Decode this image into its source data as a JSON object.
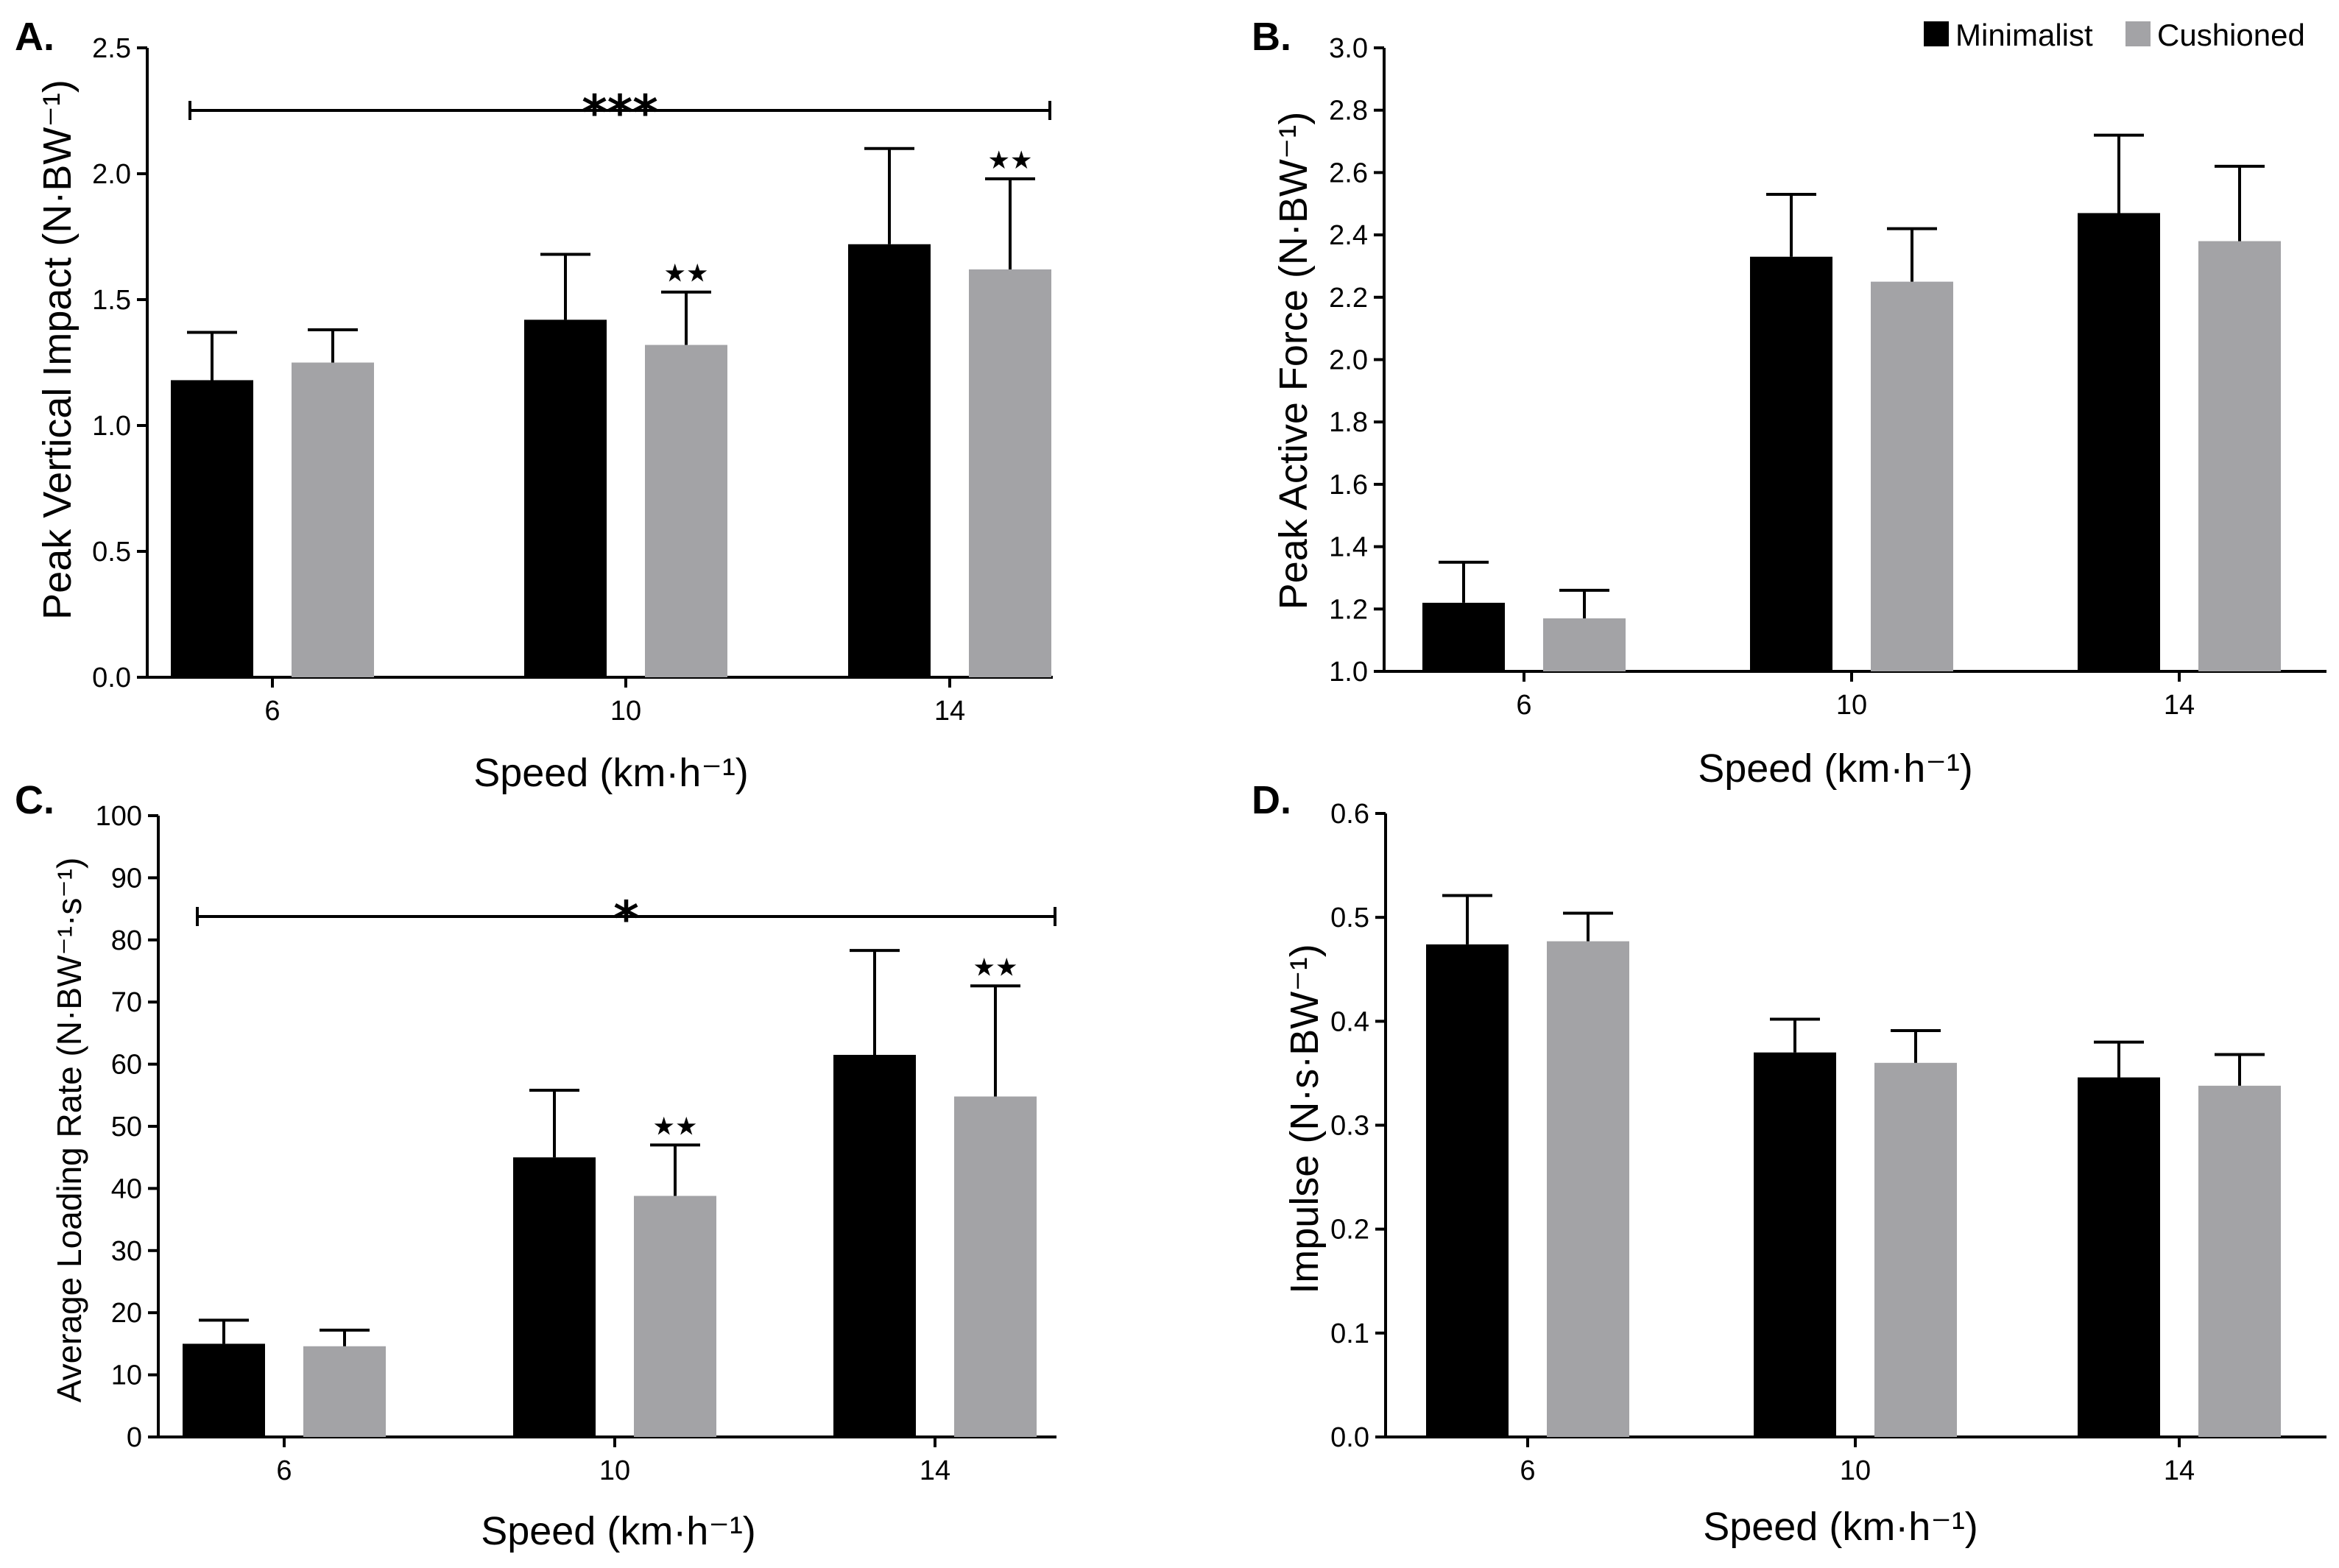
{
  "figure": {
    "legend": [
      {
        "label": "Minimalist",
        "color": "#000000"
      },
      {
        "label": "Cushioned",
        "color": "#a3a3a6"
      }
    ]
  },
  "chart_data": [
    {
      "panel": "A.",
      "type": "bar",
      "ylabel": "Peak Vertical Impact (N·BW⁻¹)",
      "xlabel": "Speed (km·h⁻¹)",
      "categories": [
        "6",
        "10",
        "14"
      ],
      "ylim": [
        0,
        2.5
      ],
      "yticks": [
        0.0,
        0.5,
        1.0,
        1.5,
        2.0,
        2.5
      ],
      "ytick_labels": [
        "0.0",
        "0.5",
        "1.0",
        "1.5",
        "2.0",
        "2.5"
      ],
      "series": [
        {
          "name": "Minimalist",
          "values": [
            1.18,
            1.42,
            1.72
          ],
          "errors": [
            0.19,
            0.26,
            0.38
          ]
        },
        {
          "name": "Cushioned",
          "values": [
            1.25,
            1.32,
            1.62
          ],
          "errors": [
            0.13,
            0.21,
            0.36
          ]
        }
      ],
      "significance_bar": {
        "label": "***",
        "from": "6",
        "to": "14"
      },
      "stars": [
        {
          "category": "10",
          "series": "Cushioned",
          "label": "★★"
        },
        {
          "category": "14",
          "series": "Cushioned",
          "label": "★★"
        }
      ]
    },
    {
      "panel": "B.",
      "type": "bar",
      "ylabel": "Peak Active Force  (N·BW⁻¹)",
      "xlabel": "Speed (km·h⁻¹)",
      "categories": [
        "6",
        "10",
        "14"
      ],
      "ylim": [
        1.0,
        3.0
      ],
      "yticks": [
        1.0,
        1.2,
        1.4,
        1.6,
        1.8,
        2.0,
        2.2,
        2.4,
        2.6,
        2.8,
        3.0
      ],
      "ytick_labels": [
        "1.0",
        "1.2",
        "1.4",
        "1.6",
        "1.8",
        "2.0",
        "2.2",
        "2.4",
        "2.6",
        "2.8",
        "3.0"
      ],
      "series": [
        {
          "name": "Minimalist",
          "values": [
            1.22,
            2.33,
            2.47
          ],
          "errors": [
            0.13,
            0.2,
            0.25
          ]
        },
        {
          "name": "Cushioned",
          "values": [
            1.17,
            2.25,
            2.38
          ],
          "errors": [
            0.09,
            0.17,
            0.24
          ]
        }
      ],
      "legend_position": "top-right"
    },
    {
      "panel": "C.",
      "type": "bar",
      "ylabel": "Average Loading Rate (N·BW⁻¹·s⁻¹)",
      "xlabel": "Speed (km·h⁻¹)",
      "categories": [
        "6",
        "10",
        "14"
      ],
      "ylim": [
        0,
        100
      ],
      "yticks": [
        0,
        10,
        20,
        30,
        40,
        50,
        60,
        70,
        80,
        90,
        100
      ],
      "ytick_labels": [
        "0",
        "10",
        "20",
        "30",
        "40",
        "50",
        "60",
        "70",
        "80",
        "90",
        "100"
      ],
      "series": [
        {
          "name": "Minimalist",
          "values": [
            15,
            45,
            61.5
          ],
          "errors": [
            3.8,
            10.8,
            16.8
          ]
        },
        {
          "name": "Cushioned",
          "values": [
            14.6,
            38.8,
            54.8
          ],
          "errors": [
            2.6,
            8.2,
            17.8
          ]
        }
      ],
      "significance_bar": {
        "label": "*",
        "from": "6",
        "to": "14"
      },
      "stars": [
        {
          "category": "10",
          "series": "Cushioned",
          "label": "★★"
        },
        {
          "category": "14",
          "series": "Cushioned",
          "label": "★★"
        }
      ]
    },
    {
      "panel": "D.",
      "type": "bar",
      "ylabel": "Impulse  (N·s·BW⁻¹)",
      "xlabel": "Speed (km·h⁻¹)",
      "categories": [
        "6",
        "10",
        "14"
      ],
      "ylim": [
        0,
        0.6
      ],
      "yticks": [
        0.0,
        0.1,
        0.2,
        0.3,
        0.4,
        0.5,
        0.6
      ],
      "ytick_labels": [
        "0.0",
        "0.1",
        "0.2",
        "0.3",
        "0.4",
        "0.5",
        "0.6"
      ],
      "series": [
        {
          "name": "Minimalist",
          "values": [
            0.474,
            0.37,
            0.346
          ],
          "errors": [
            0.047,
            0.032,
            0.034
          ]
        },
        {
          "name": "Cushioned",
          "values": [
            0.477,
            0.36,
            0.338
          ],
          "errors": [
            0.027,
            0.031,
            0.03
          ]
        }
      ]
    }
  ]
}
